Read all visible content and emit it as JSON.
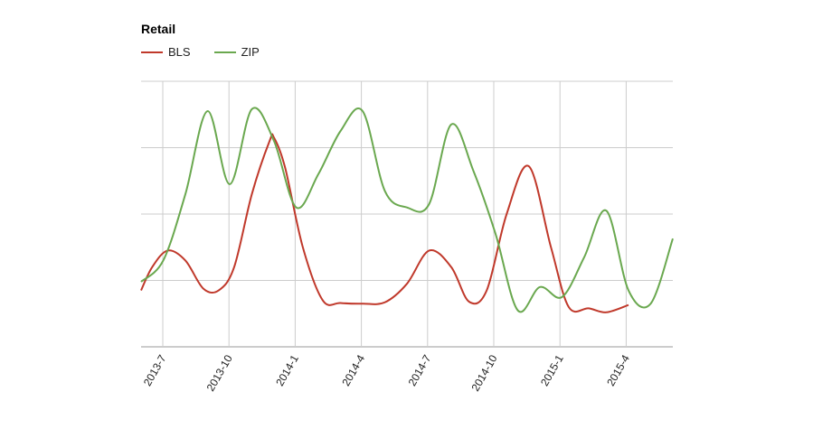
{
  "chart_data": {
    "type": "line",
    "title": "Retail",
    "xlabel": "",
    "ylabel": "",
    "x_ticks": [
      "2013-7",
      "2013-10",
      "2014-1",
      "2014-4",
      "2014-7",
      "2014-10",
      "2015-1",
      "2015-4"
    ],
    "x_range": [
      0,
      24
    ],
    "ylim": [
      0,
      4
    ],
    "grid": true,
    "legend_position": "top-left",
    "series": [
      {
        "name": "BLS",
        "color": "#c0392b",
        "points": [
          [
            0,
            0.85
          ],
          [
            0.5,
            1.2
          ],
          [
            1.2,
            1.45
          ],
          [
            2.0,
            1.3
          ],
          [
            2.8,
            0.88
          ],
          [
            3.5,
            0.85
          ],
          [
            4.2,
            1.2
          ],
          [
            5.0,
            2.3
          ],
          [
            5.8,
            3.1
          ],
          [
            6.0,
            3.15
          ],
          [
            6.5,
            2.7
          ],
          [
            7.3,
            1.5
          ],
          [
            8.2,
            0.7
          ],
          [
            9.0,
            0.66
          ],
          [
            10.0,
            0.65
          ],
          [
            11.0,
            0.67
          ],
          [
            12.0,
            0.95
          ],
          [
            13.0,
            1.45
          ],
          [
            14.0,
            1.2
          ],
          [
            14.8,
            0.68
          ],
          [
            15.6,
            0.85
          ],
          [
            16.5,
            2.0
          ],
          [
            17.5,
            2.72
          ],
          [
            18.5,
            1.5
          ],
          [
            19.3,
            0.6
          ],
          [
            20.2,
            0.58
          ],
          [
            21.0,
            0.52
          ],
          [
            22.0,
            0.63
          ]
        ]
      },
      {
        "name": "ZIP",
        "color": "#6aa84f",
        "points": [
          [
            0,
            0.98
          ],
          [
            1.0,
            1.3
          ],
          [
            2.0,
            2.3
          ],
          [
            3.0,
            3.55
          ],
          [
            4.0,
            2.45
          ],
          [
            5.0,
            3.58
          ],
          [
            6.0,
            3.1
          ],
          [
            7.0,
            2.1
          ],
          [
            8.0,
            2.6
          ],
          [
            9.0,
            3.25
          ],
          [
            10.0,
            3.55
          ],
          [
            11.0,
            2.35
          ],
          [
            12.0,
            2.1
          ],
          [
            13.0,
            2.15
          ],
          [
            14.0,
            3.35
          ],
          [
            15.0,
            2.65
          ],
          [
            16.0,
            1.7
          ],
          [
            17.0,
            0.55
          ],
          [
            18.0,
            0.9
          ],
          [
            19.0,
            0.75
          ],
          [
            20.0,
            1.35
          ],
          [
            21.0,
            2.05
          ],
          [
            22.0,
            0.85
          ],
          [
            23.0,
            0.65
          ],
          [
            24.0,
            1.63
          ]
        ]
      }
    ]
  }
}
